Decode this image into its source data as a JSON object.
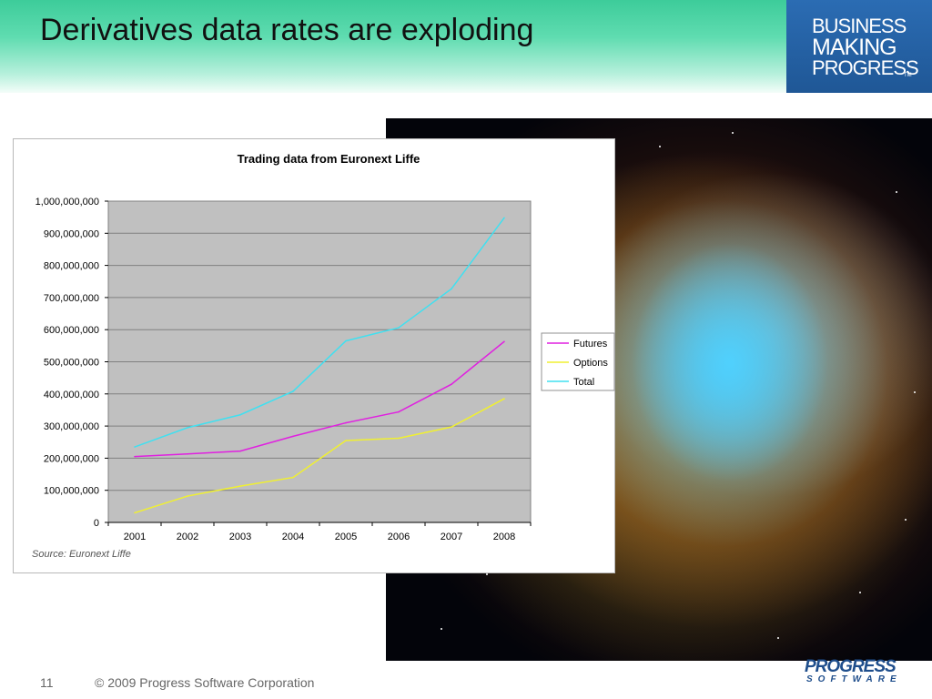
{
  "slide": {
    "title": "Derivatives data rates are exploding",
    "brand_lines": [
      "BUSINESS",
      "MAKING",
      "PROGRESS"
    ],
    "brand_tm": "TM",
    "page_number": "11",
    "copyright": "© 2009 Progress Software Corporation",
    "footer_logo_top": "PROGRESS",
    "footer_logo_bottom": "SOFTWARE"
  },
  "colors": {
    "futures": "#e020e0",
    "options": "#f0f030",
    "total": "#40e0f0",
    "plot_bg": "#c0c0c0",
    "gridline": "#808080"
  },
  "chart_data": {
    "type": "line",
    "title": "Trading data from Euronext Liffe",
    "xlabel": "",
    "ylabel": "",
    "categories": [
      "2001",
      "2002",
      "2003",
      "2004",
      "2005",
      "2006",
      "2007",
      "2008"
    ],
    "y_ticks": [
      "0",
      "100,000,000",
      "200,000,000",
      "300,000,000",
      "400,000,000",
      "500,000,000",
      "600,000,000",
      "700,000,000",
      "800,000,000",
      "900,000,000",
      "1,000,000,000"
    ],
    "ylim": [
      0,
      1000000000
    ],
    "grid": true,
    "legend_position": "right",
    "series": [
      {
        "name": "Futures",
        "color_key": "futures",
        "values": [
          205000000,
          213000000,
          222000000,
          268000000,
          310000000,
          344000000,
          430000000,
          563000000
        ]
      },
      {
        "name": "Options",
        "color_key": "options",
        "values": [
          30000000,
          82000000,
          113000000,
          140000000,
          255000000,
          262000000,
          297000000,
          385000000
        ]
      },
      {
        "name": "Total",
        "color_key": "total",
        "values": [
          235000000,
          295000000,
          335000000,
          408000000,
          565000000,
          606000000,
          727000000,
          948000000
        ]
      }
    ],
    "source": "Source: Euronext Liffe"
  }
}
